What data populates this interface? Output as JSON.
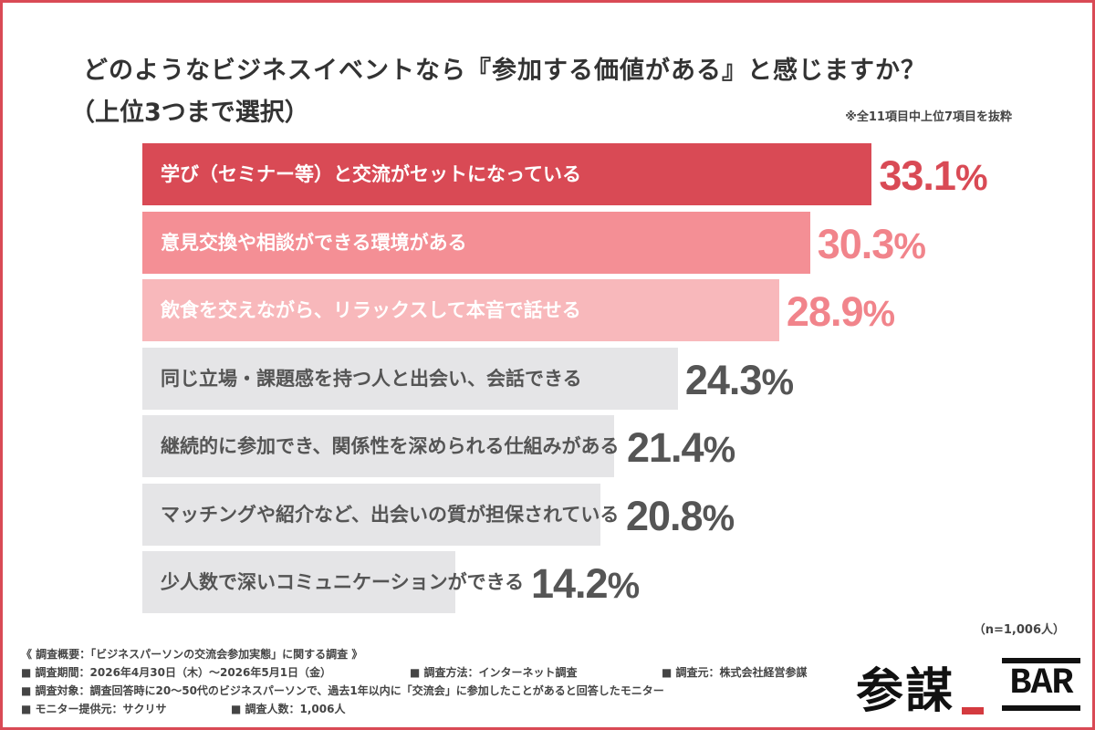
{
  "title": "どのようなビジネスイベントなら『参加する価値がある』と感じますか？",
  "subtitle": "（上位3つまで選択）",
  "note_top": "※全11項目中上位7項目を抜粋",
  "n_note": "（n=1,006人）",
  "colors": {
    "frame": "#d94a55",
    "bar_1": "#d94a55",
    "bar_2": "#f48f95",
    "bar_3": "#f8b8bb",
    "bar_other": "#e5e5e7",
    "value_1": "#d94a55",
    "value_2_3": "#f1848b",
    "value_other": "#555555",
    "label_light": "#ffffff",
    "label_dark": "#555555"
  },
  "chart_data": {
    "type": "bar",
    "orientation": "horizontal",
    "xlim": [
      0,
      35
    ],
    "categories": [
      "学び（セミナー等）と交流がセットになっている",
      "意見交換や相談ができる環境がある",
      "飲食を交えながら、リラックスして本音で話せる",
      "同じ立場・課題感を持つ人と出会い、会話できる",
      "継続的に参加でき、関係性を深められる仕組みがある",
      "マッチングや紹介など、出会いの質が担保されている",
      "少人数で深いコミュニケーションができる"
    ],
    "values": [
      33.1,
      30.3,
      28.9,
      24.3,
      21.4,
      20.8,
      14.2
    ],
    "value_labels": [
      "33.1",
      "30.3",
      "28.9",
      "24.3",
      "21.4",
      "20.8",
      "14.2"
    ],
    "unit": "%"
  },
  "footer": {
    "line1": "《 調査概要：「ビジネスパーソンの交流会参加実態」に関する調査 》",
    "period": "■ 調査期間：2026年4月30日（木）〜2026年5月1日（金）",
    "method": "■ 調査方法：インターネット調査",
    "source": "■ 調査元：株式会社経営参謀",
    "target": "■ 調査対象：調査回答時に20〜50代のビジネスパーソンで、過去1年以内に「交流会」に参加したことがあると回答したモニター",
    "provider": "■ モニター提供元：サクリサ",
    "count": "■ 調査人数：1,006人"
  },
  "logo": {
    "kanji": "参謀",
    "bar_text": "BAR"
  }
}
